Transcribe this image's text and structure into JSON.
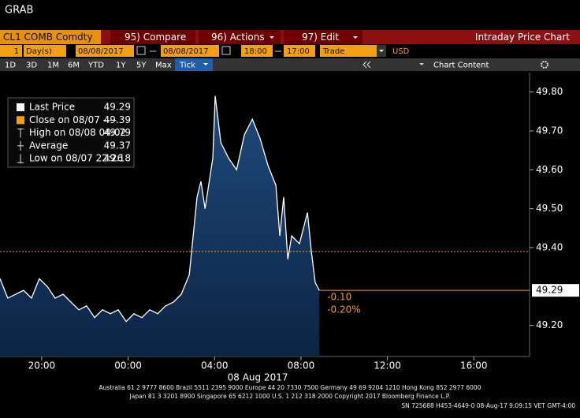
{
  "header": {
    "title": "GRAB"
  },
  "command_bar": {
    "security": "CL1 COMB Comdty",
    "compare": "95) Compare",
    "actions": "96) Actions",
    "edit": "97) Edit",
    "page_title": "Intraday Price Chart"
  },
  "settings_bar": {
    "period_count": 1,
    "period_unit": "Day(s)",
    "start_date": "08/08/2017",
    "end_date": "08/08/2017",
    "start_time": "18:00",
    "end_time": "17:00",
    "field": "Trade",
    "currency": "USD"
  },
  "range_bar": {
    "buttons": [
      "1D",
      "3D",
      "1M",
      "6M",
      "YTD",
      "1Y",
      "5Y",
      "Max",
      "Tick"
    ],
    "chart_content": "Chart Content"
  },
  "chart_data": {
    "type": "area",
    "x": [
      0.07,
      0.43,
      0.8,
      1.16,
      1.53,
      1.89,
      2.26,
      2.62,
      2.99,
      3.35,
      3.72,
      4.08,
      4.45,
      4.81,
      5.18,
      5.54,
      5.91,
      6.27,
      6.64,
      7.0,
      7.37,
      7.73,
      8.1,
      8.46,
      8.83,
      9.19,
      9.37,
      9.56,
      9.92,
      10.03,
      10.29,
      10.65,
      11.02,
      11.38,
      11.75,
      12.11,
      12.48,
      12.84,
      13.02,
      13.2,
      13.39,
      13.57,
      13.93,
      14.3,
      14.48,
      14.66,
      14.85
    ],
    "series": [
      {
        "color": "#ffffff",
        "area_color": "#17375e",
        "values": [
          49.32,
          49.27,
          49.28,
          49.29,
          49.27,
          49.32,
          49.3,
          49.27,
          49.28,
          49.26,
          49.24,
          49.25,
          49.22,
          49.24,
          49.23,
          49.24,
          49.21,
          49.23,
          49.22,
          49.24,
          49.23,
          49.25,
          49.26,
          49.28,
          49.33,
          49.53,
          49.57,
          49.5,
          49.63,
          49.79,
          49.67,
          49.63,
          49.6,
          49.69,
          49.73,
          49.68,
          49.61,
          49.56,
          49.43,
          49.53,
          49.37,
          49.43,
          49.41,
          49.49,
          49.39,
          49.31,
          49.29
        ]
      }
    ],
    "xlim": [
      0.07,
      24.58
    ],
    "ylim": [
      49.12,
      49.85
    ],
    "xticks": [
      {
        "value": 2,
        "label": "20:00"
      },
      {
        "value": 6,
        "label": "00:00"
      },
      {
        "value": 10,
        "label": "04:00"
      },
      {
        "value": 14,
        "label": "08:00"
      },
      {
        "value": 18,
        "label": "12:00"
      },
      {
        "value": 22,
        "label": "16:00"
      }
    ],
    "x_date_label": "08 Aug 2017",
    "yticks": [
      {
        "value": 49.2,
        "label": "49.20"
      },
      {
        "value": 49.4,
        "label": "49.40"
      },
      {
        "value": 49.5,
        "label": "49.50"
      },
      {
        "value": 49.6,
        "label": "49.60"
      },
      {
        "value": 49.7,
        "label": "49.70"
      },
      {
        "value": 49.8,
        "label": "49.80"
      }
    ],
    "legend": [
      {
        "label": "Last Price",
        "value": 49.29,
        "color": "#ffffff"
      },
      {
        "label": "Close on 08/07 ----",
        "value": 49.39,
        "color": "#f39f16"
      },
      {
        "label": "High on 08/08 04:02",
        "value": 49.79,
        "color": "#dddddd"
      },
      {
        "label": "Average",
        "value": 49.37,
        "color": "#dddddd"
      },
      {
        "label": "Low on 08/07 22:26",
        "value": 49.18,
        "color": "#dddddd"
      }
    ],
    "change": "-0.10",
    "change_pct": "-0.20%",
    "reference_color": "#f39f16"
  },
  "footer": {
    "lines": [
      "Australia 61 2 9777 8600 Brazil 5511 2395 9000 Europe 44 20 7330 7500 Germany 49 69 9204 1210 Hong Kong 852 2977 6000",
      "Japan 81 3 3201 8900      Singapore 65 6212 1000      U.S. 1 212 318 2000      Copyright 2017 Bloomberg Finance L.P.",
      "SN 725688 H453-4649-0 08-Aug-17  9:09:15 VET  GMT-4:00"
    ]
  }
}
